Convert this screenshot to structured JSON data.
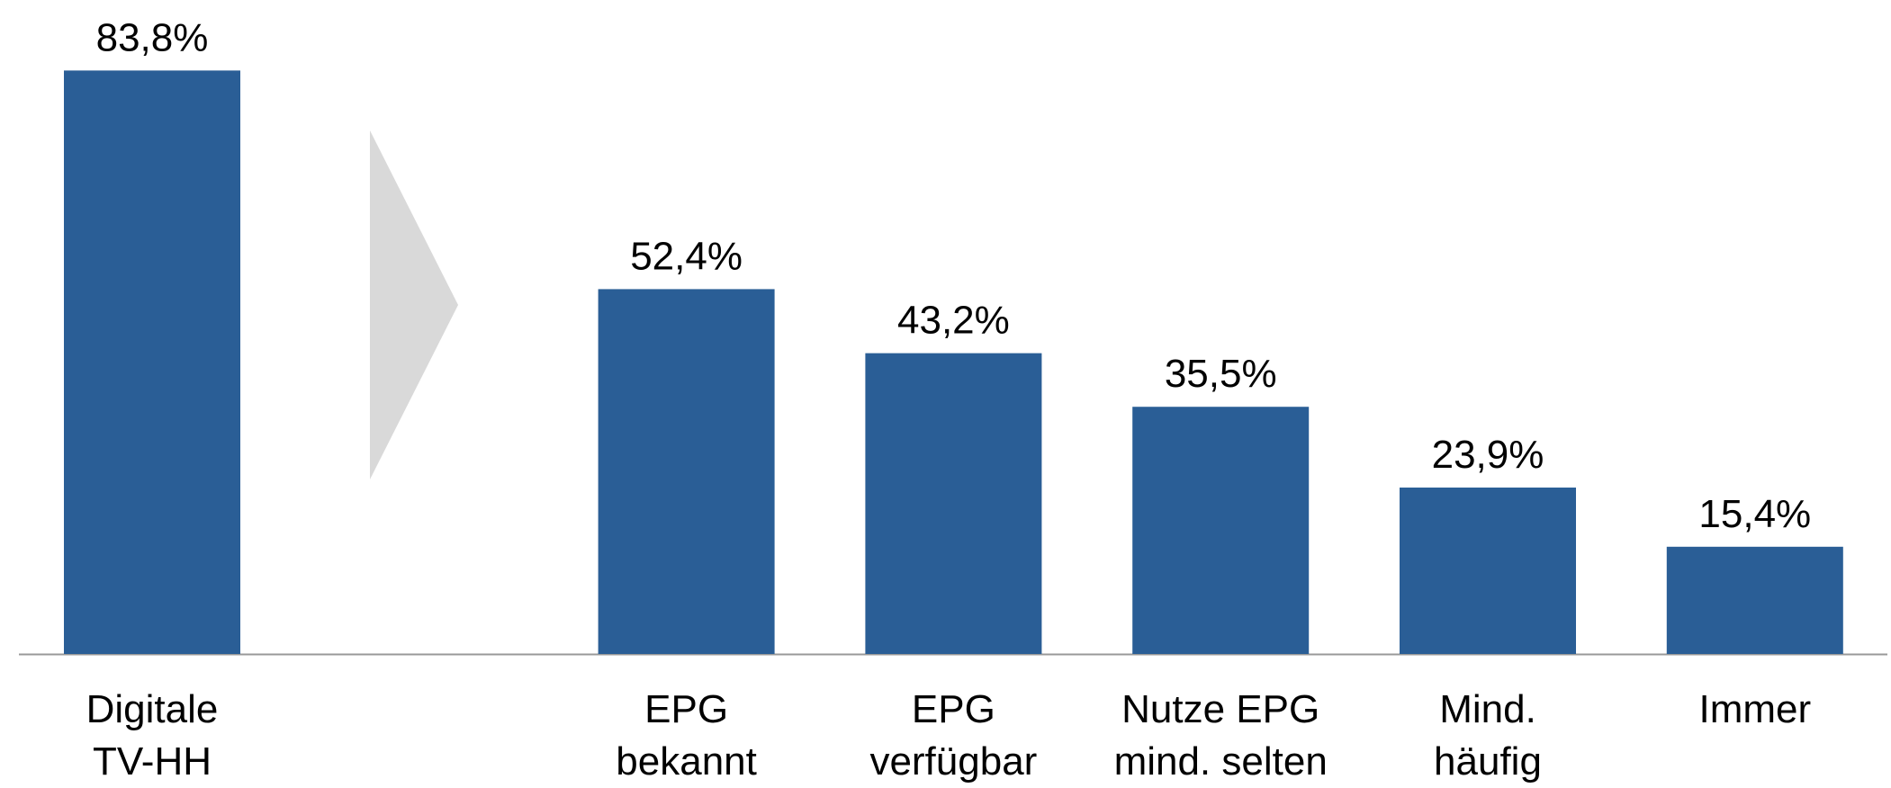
{
  "chart_data": {
    "type": "bar",
    "categories": [
      "Digitale\nTV-HH",
      null,
      "EPG\nbekannt",
      "EPG\nverfügbar",
      "Nutze EPG\nmind. selten",
      "Mind.\nhäufig",
      "Immer"
    ],
    "values": [
      83.8,
      null,
      52.4,
      43.2,
      35.5,
      23.9,
      15.4
    ],
    "value_labels": [
      "83,8%",
      null,
      "52,4%",
      "43,2%",
      "35,5%",
      "23,9%",
      "15,4%"
    ],
    "color": "#2a5e96",
    "ylim": [
      0,
      100
    ]
  }
}
